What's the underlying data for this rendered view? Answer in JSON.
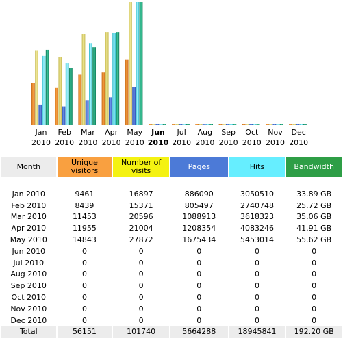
{
  "colors": {
    "unique_visitors": "#f9a040",
    "number_of_visits": "#f4f212",
    "pages": "#4c7ad7",
    "hits": "#66eeff",
    "bandwidth": "#2e9e46"
  },
  "chart_data": {
    "type": "bar",
    "categories": [
      {
        "m": "Jan",
        "y": "2010"
      },
      {
        "m": "Feb",
        "y": "2010"
      },
      {
        "m": "Mar",
        "y": "2010"
      },
      {
        "m": "Apr",
        "y": "2010"
      },
      {
        "m": "May",
        "y": "2010"
      },
      {
        "m": "Jun",
        "y": "2010"
      },
      {
        "m": "Jul",
        "y": "2010"
      },
      {
        "m": "Aug",
        "y": "2010"
      },
      {
        "m": "Sep",
        "y": "2010"
      },
      {
        "m": "Oct",
        "y": "2010"
      },
      {
        "m": "Nov",
        "y": "2010"
      },
      {
        "m": "Dec",
        "y": "2010"
      }
    ],
    "current_index": 5,
    "series": [
      {
        "name": "Unique visitors",
        "values": [
          9461,
          8439,
          11453,
          11955,
          14843,
          0,
          0,
          0,
          0,
          0,
          0,
          0
        ]
      },
      {
        "name": "Number of visits",
        "values": [
          16897,
          15371,
          20596,
          21004,
          27872,
          0,
          0,
          0,
          0,
          0,
          0,
          0
        ]
      },
      {
        "name": "Pages",
        "values": [
          886090,
          805497,
          1088913,
          1208354,
          1675434,
          0,
          0,
          0,
          0,
          0,
          0,
          0
        ]
      },
      {
        "name": "Hits",
        "values": [
          3050510,
          2740748,
          3618323,
          4083246,
          5453014,
          0,
          0,
          0,
          0,
          0,
          0,
          0
        ]
      },
      {
        "name": "Bandwidth",
        "values": [
          33.89,
          25.72,
          35.06,
          41.91,
          55.62,
          0,
          0,
          0,
          0,
          0,
          0,
          0
        ]
      }
    ]
  },
  "table": {
    "headers": [
      "Month",
      "Unique visitors",
      "Number of visits",
      "Pages",
      "Hits",
      "Bandwidth"
    ],
    "rows": [
      [
        "Jan 2010",
        "9461",
        "16897",
        "886090",
        "3050510",
        "33.89 GB"
      ],
      [
        "Feb 2010",
        "8439",
        "15371",
        "805497",
        "2740748",
        "25.72 GB"
      ],
      [
        "Mar 2010",
        "11453",
        "20596",
        "1088913",
        "3618323",
        "35.06 GB"
      ],
      [
        "Apr 2010",
        "11955",
        "21004",
        "1208354",
        "4083246",
        "41.91 GB"
      ],
      [
        "May 2010",
        "14843",
        "27872",
        "1675434",
        "5453014",
        "55.62 GB"
      ],
      [
        "Jun 2010",
        "0",
        "0",
        "0",
        "0",
        "0"
      ],
      [
        "Jul 2010",
        "0",
        "0",
        "0",
        "0",
        "0"
      ],
      [
        "Aug 2010",
        "0",
        "0",
        "0",
        "0",
        "0"
      ],
      [
        "Sep 2010",
        "0",
        "0",
        "0",
        "0",
        "0"
      ],
      [
        "Oct 2010",
        "0",
        "0",
        "0",
        "0",
        "0"
      ],
      [
        "Nov 2010",
        "0",
        "0",
        "0",
        "0",
        "0"
      ],
      [
        "Dec 2010",
        "0",
        "0",
        "0",
        "0",
        "0"
      ]
    ],
    "current_row": 5,
    "total": [
      "Total",
      "56151",
      "101740",
      "5664288",
      "18945841",
      "192.20 GB"
    ]
  }
}
